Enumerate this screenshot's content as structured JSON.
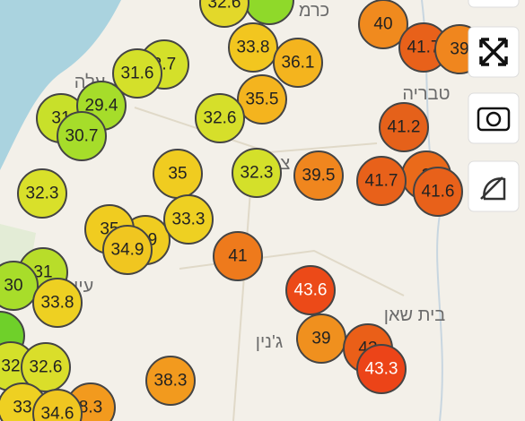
{
  "markers": [
    {
      "label": "32.6",
      "color": "#e3d82a",
      "text_color": "#222"
    },
    {
      "label": "40",
      "color": "#f08a1e",
      "text_color": "#222"
    },
    {
      "label": "41.7",
      "color": "#e8611a",
      "text_color": "#222"
    },
    {
      "label": "39",
      "color": "#f0861e",
      "text_color": "#222"
    },
    {
      "label": "2.7",
      "color": "#d4e02a",
      "text_color": "#222"
    },
    {
      "label": "31.6",
      "color": "#d4e02a",
      "text_color": "#222"
    },
    {
      "label": "33.8",
      "color": "#f2c61f",
      "text_color": "#222"
    },
    {
      "label": "36.1",
      "color": "#f4b41e",
      "text_color": "#222"
    },
    {
      "label": "31",
      "color": "#c8e02a",
      "text_color": "#222"
    },
    {
      "label": "29.4",
      "color": "#a6dd2a",
      "text_color": "#222"
    },
    {
      "label": "30.7",
      "color": "#a6dd2a",
      "text_color": "#222"
    },
    {
      "label": "35.5",
      "color": "#f4b41e",
      "text_color": "#222"
    },
    {
      "label": "32.6",
      "color": "#d6df2a",
      "text_color": "#222"
    },
    {
      "label": "41.2",
      "color": "#e5611a",
      "text_color": "#222"
    },
    {
      "label": "35",
      "color": "#f0cc20",
      "text_color": "#222"
    },
    {
      "label": "32.3",
      "color": "#d4e02a",
      "text_color": "#222"
    },
    {
      "label": "39.5",
      "color": "#f0861e",
      "text_color": "#222"
    },
    {
      "label": "3",
      "color": "#ea6a1a",
      "text_color": "#222"
    },
    {
      "label": "41.7",
      "color": "#e8611a",
      "text_color": "#222"
    },
    {
      "label": "41.6",
      "color": "#e8611a",
      "text_color": "#222"
    },
    {
      "label": "32.3",
      "color": "#d9e02a",
      "text_color": "#222"
    },
    {
      "label": "3.9",
      "color": "#f0cc20",
      "text_color": "#222"
    },
    {
      "label": "35",
      "color": "#f0cc20",
      "text_color": "#222"
    },
    {
      "label": "33.3",
      "color": "#eed022",
      "text_color": "#222"
    },
    {
      "label": "34.9",
      "color": "#f0c620",
      "text_color": "#222"
    },
    {
      "label": "41",
      "color": "#ee7a1c",
      "text_color": "#222"
    },
    {
      "label": "31",
      "color": "#b8dd2a",
      "text_color": "#222"
    },
    {
      "label": "30",
      "color": "#a8dd2a",
      "text_color": "#222"
    },
    {
      "label": "33.8",
      "color": "#eed022",
      "text_color": "#222"
    },
    {
      "label": "43.6",
      "color": "#ec4a18",
      "text_color": "#fff"
    },
    {
      "label": "39",
      "color": "#f0901e",
      "text_color": "#222"
    },
    {
      "label": "43",
      "color": "#ea5f18",
      "text_color": "#222"
    },
    {
      "label": "43.3",
      "color": "#ec4418",
      "text_color": "#fff"
    },
    {
      "label": "38.3",
      "color": "#f29a1e",
      "text_color": "#222"
    },
    {
      "label": "32",
      "color": "#d4e02a",
      "text_color": "#222"
    },
    {
      "label": "32.6",
      "color": "#dade2a",
      "text_color": "#222"
    },
    {
      "label": "8.3",
      "color": "#f29a1e",
      "text_color": "#222"
    },
    {
      "label": "33",
      "color": "#eed022",
      "text_color": "#222"
    },
    {
      "label": "34.6",
      "color": "#f0c620",
      "text_color": "#222"
    }
  ],
  "places": [
    "כרמ",
    "טבריה",
    "בית שאן",
    "ג'נין",
    "עלה",
    "צ",
    "עין יע"
  ]
}
